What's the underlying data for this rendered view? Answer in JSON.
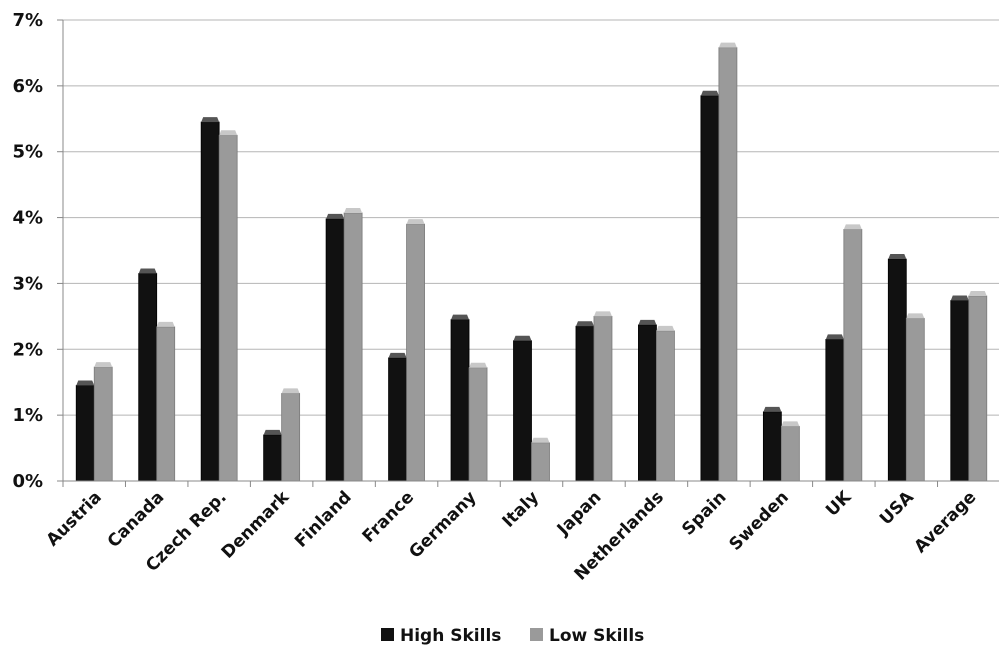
{
  "chart_data": {
    "type": "bar",
    "categories": [
      "Austria",
      "Canada",
      "Czech Rep.",
      "Denmark",
      "Finland",
      "France",
      "Germany",
      "Italy",
      "Japan",
      "Netherlands",
      "Spain",
      "Sweden",
      "UK",
      "USA",
      "Average"
    ],
    "series": [
      {
        "name": "High Skills",
        "color": "#111111",
        "values": [
          1.45,
          3.15,
          5.45,
          0.7,
          3.98,
          1.87,
          2.45,
          2.13,
          2.35,
          2.37,
          5.85,
          1.05,
          2.15,
          3.37,
          2.74
        ]
      },
      {
        "name": "Low Skills",
        "color": "#9a9a9a",
        "values": [
          1.73,
          2.34,
          5.25,
          1.33,
          4.07,
          3.9,
          1.72,
          0.58,
          2.5,
          2.28,
          6.58,
          0.83,
          3.82,
          2.47,
          2.81
        ]
      }
    ],
    "yticks": [
      "0%",
      "1%",
      "2%",
      "3%",
      "4%",
      "5%",
      "6%",
      "7%"
    ],
    "ylim": [
      0,
      7
    ],
    "grid": true,
    "legend_position": "bottom"
  }
}
